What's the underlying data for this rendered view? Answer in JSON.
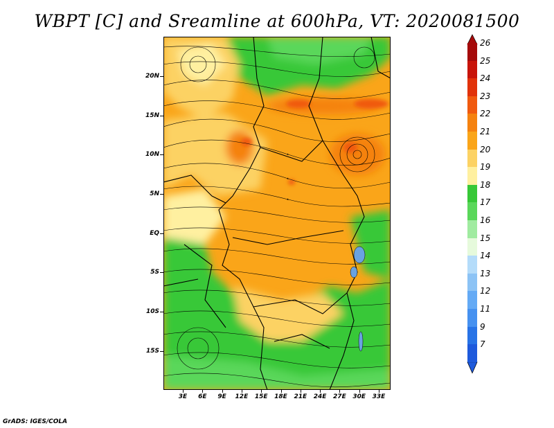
{
  "title": "WBPT [C] and Sreamline at 600hPa, VT: 2020081500",
  "footer": "GrADS: IGES/COLA",
  "map": {
    "lat_labels": [
      "20N",
      "15N",
      "10N",
      "5N",
      "EQ",
      "5S",
      "10S",
      "15S"
    ],
    "lon_labels": [
      "3E",
      "6E",
      "9E",
      "12E",
      "15E",
      "18E",
      "21E",
      "24E",
      "27E",
      "30E",
      "33E"
    ],
    "lon_range": [
      0,
      35
    ],
    "lat_range": [
      -20,
      25
    ]
  },
  "legend": {
    "labels": [
      "26",
      "25",
      "24",
      "23",
      "22",
      "21",
      "20",
      "19",
      "18",
      "17",
      "16",
      "15",
      "14",
      "13",
      "12",
      "11",
      "9",
      "7"
    ],
    "colors": [
      "#a50a0a",
      "#c8140a",
      "#e1320a",
      "#f05a0f",
      "#f5820f",
      "#faa519",
      "#fcd264",
      "#fff0a0",
      "#37c837",
      "#5ad75a",
      "#a0eba0",
      "#e6fadc",
      "#b4dcfa",
      "#8cc3f5",
      "#64aaf5",
      "#4691f0",
      "#2873e6",
      "#1e5adc"
    ],
    "top_arrow_color": "#a50a0a",
    "bottom_arrow_color": "#1e5adc"
  }
}
